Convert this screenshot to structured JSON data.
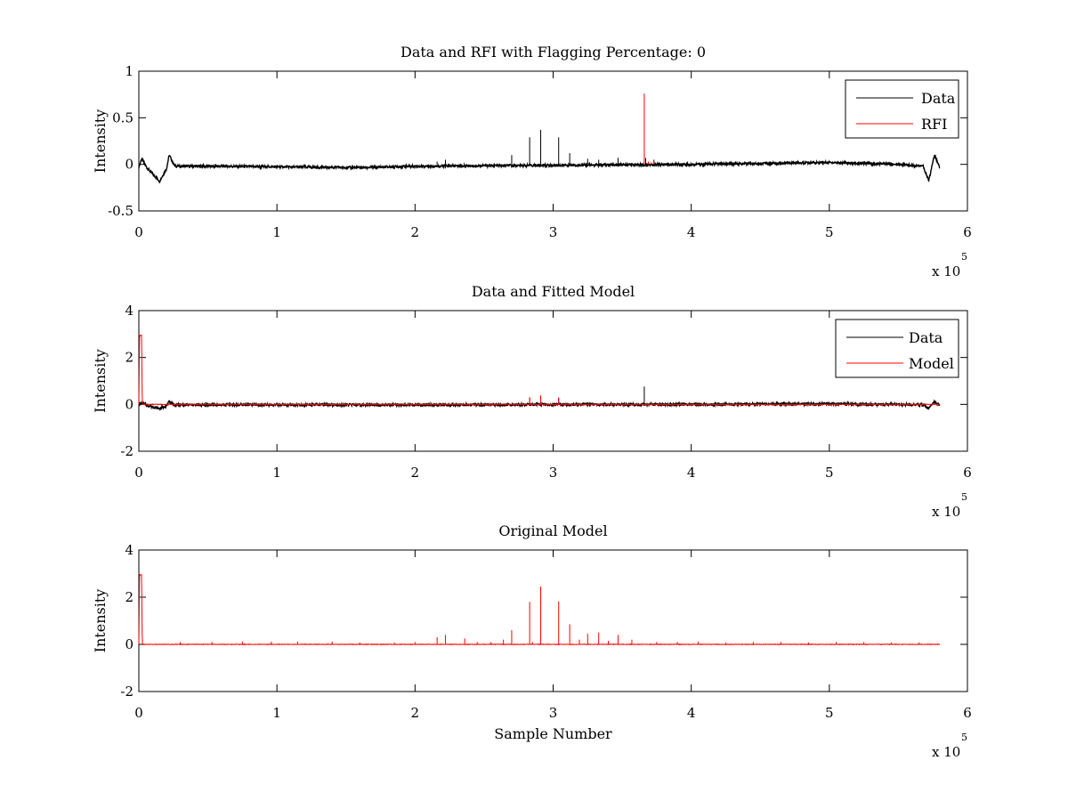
{
  "figure": {
    "background": "#ffffff"
  },
  "chart_data": [
    {
      "type": "line",
      "title": "Data and RFI with Flagging Percentage: 0",
      "xlabel": "",
      "ylabel": "Intensity",
      "xlim": [
        0,
        600000
      ],
      "ylim": [
        -0.5,
        1
      ],
      "x_ticks": [
        0,
        1,
        2,
        3,
        4,
        5,
        6
      ],
      "y_ticks": [
        "-0.5",
        "0",
        "0.5",
        "1"
      ],
      "y_tick_values": [
        -0.5,
        0,
        0.5,
        1
      ],
      "x_multiplier": "x 10",
      "x_multiplier_exp": "5",
      "legend_position": "top-right",
      "grid": false,
      "series": [
        {
          "name": "Data",
          "color": "#000000",
          "baseline": [
            [
              0,
              -0.03
            ],
            [
              2000,
              0.06
            ],
            [
              6000,
              -0.04
            ],
            [
              15000,
              -0.18
            ],
            [
              20000,
              -0.05
            ],
            [
              22000,
              0.1
            ],
            [
              26000,
              -0.02
            ],
            [
              60000,
              -0.02
            ],
            [
              120000,
              -0.03
            ],
            [
              160000,
              -0.035
            ],
            [
              200000,
              -0.02
            ],
            [
              250000,
              -0.015
            ],
            [
              300000,
              -0.01
            ],
            [
              350000,
              -0.005
            ],
            [
              400000,
              0.0
            ],
            [
              450000,
              0.01
            ],
            [
              500000,
              0.02
            ],
            [
              550000,
              0.0
            ],
            [
              568000,
              -0.02
            ],
            [
              572000,
              -0.18
            ],
            [
              576000,
              0.1
            ],
            [
              580000,
              -0.03
            ]
          ],
          "spikes": [
            [
              270000,
              0.1
            ],
            [
              283000,
              0.29
            ],
            [
              291000,
              0.37
            ],
            [
              304000,
              0.29
            ],
            [
              312000,
              0.12
            ],
            [
              325000,
              0.06
            ],
            [
              333000,
              0.05
            ],
            [
              347000,
              0.07
            ],
            [
              367000,
              0.07
            ],
            [
              373000,
              0.05
            ],
            [
              216000,
              0.03
            ],
            [
              222000,
              0.05
            ]
          ]
        },
        {
          "name": "RFI",
          "color": "#ff0000",
          "baseline": [],
          "spikes": [
            [
              366000,
              0.76
            ],
            [
              369000,
              0.03
            ],
            [
              371000,
              0.02
            ],
            [
              373000,
              0.03
            ]
          ]
        }
      ]
    },
    {
      "type": "line",
      "title": "Data and Fitted Model",
      "xlabel": "",
      "ylabel": "Intensity",
      "xlim": [
        0,
        600000
      ],
      "ylim": [
        -2,
        4
      ],
      "x_ticks": [
        0,
        1,
        2,
        3,
        4,
        5,
        6
      ],
      "y_ticks": [
        "-2",
        "0",
        "2",
        "4"
      ],
      "y_tick_values": [
        -2,
        0,
        2,
        4
      ],
      "x_multiplier": "x 10",
      "x_multiplier_exp": "5",
      "legend_position": "top-right",
      "grid": false,
      "series": [
        {
          "name": "Data",
          "color": "#000000",
          "baseline": [
            [
              0,
              -0.02
            ],
            [
              2000,
              0.06
            ],
            [
              6000,
              -0.04
            ],
            [
              15000,
              -0.18
            ],
            [
              20000,
              -0.05
            ],
            [
              22000,
              0.1
            ],
            [
              26000,
              -0.02
            ],
            [
              200000,
              -0.02
            ],
            [
              400000,
              0.0
            ],
            [
              500000,
              0.02
            ],
            [
              568000,
              -0.02
            ],
            [
              572000,
              -0.18
            ],
            [
              576000,
              0.1
            ],
            [
              580000,
              -0.03
            ]
          ],
          "spikes": [
            [
              366000,
              0.76
            ],
            [
              283000,
              0.3
            ],
            [
              291000,
              0.37
            ],
            [
              304000,
              0.29
            ]
          ]
        },
        {
          "name": "Model",
          "color": "#ff0000",
          "baseline": [
            [
              0,
              0.0
            ],
            [
              500,
              2.95
            ],
            [
              2000,
              2.95
            ],
            [
              2500,
              0.0
            ],
            [
              580000,
              0.0
            ]
          ],
          "spikes": [
            [
              283000,
              0.3
            ],
            [
              291000,
              0.38
            ],
            [
              304000,
              0.28
            ]
          ]
        }
      ]
    },
    {
      "type": "line",
      "title": "Original Model",
      "xlabel": "Sample Number",
      "ylabel": "Intensity",
      "xlim": [
        0,
        600000
      ],
      "ylim": [
        -2,
        4
      ],
      "x_ticks": [
        0,
        1,
        2,
        3,
        4,
        5,
        6
      ],
      "y_ticks": [
        "-2",
        "0",
        "2",
        "4"
      ],
      "y_tick_values": [
        -2,
        0,
        2,
        4
      ],
      "x_multiplier": "x 10",
      "x_multiplier_exp": "5",
      "grid": false,
      "series": [
        {
          "color": "#ff0000",
          "baseline": [
            [
              0,
              0.0
            ],
            [
              500,
              2.95
            ],
            [
              2000,
              2.95
            ],
            [
              2500,
              0.0
            ],
            [
              580000,
              0.0
            ]
          ],
          "spikes": [
            [
              283000,
              1.8
            ],
            [
              291000,
              2.45
            ],
            [
              304000,
              1.82
            ],
            [
              312000,
              0.85
            ],
            [
              270000,
              0.6
            ],
            [
              325000,
              0.45
            ],
            [
              333000,
              0.5
            ],
            [
              347000,
              0.4
            ],
            [
              222000,
              0.4
            ],
            [
              216000,
              0.3
            ],
            [
              236000,
              0.25
            ],
            [
              264000,
              0.2
            ],
            [
              319000,
              0.2
            ],
            [
              340000,
              0.15
            ],
            [
              357000,
              0.2
            ],
            [
              30000,
              0.1
            ],
            [
              53000,
              0.1
            ],
            [
              75000,
              0.12
            ],
            [
              96000,
              0.12
            ],
            [
              115000,
              0.12
            ],
            [
              140000,
              0.12
            ],
            [
              160000,
              0.08
            ],
            [
              185000,
              0.08
            ],
            [
              200000,
              0.1
            ],
            [
              245000,
              0.1
            ],
            [
              255000,
              0.1
            ],
            [
              285000,
              0.1
            ],
            [
              375000,
              0.1
            ],
            [
              390000,
              0.1
            ],
            [
              405000,
              0.12
            ],
            [
              425000,
              0.08
            ],
            [
              445000,
              0.1
            ],
            [
              465000,
              0.1
            ],
            [
              485000,
              0.08
            ],
            [
              505000,
              0.1
            ],
            [
              525000,
              0.1
            ],
            [
              545000,
              0.08
            ],
            [
              565000,
              0.08
            ]
          ]
        }
      ]
    }
  ]
}
